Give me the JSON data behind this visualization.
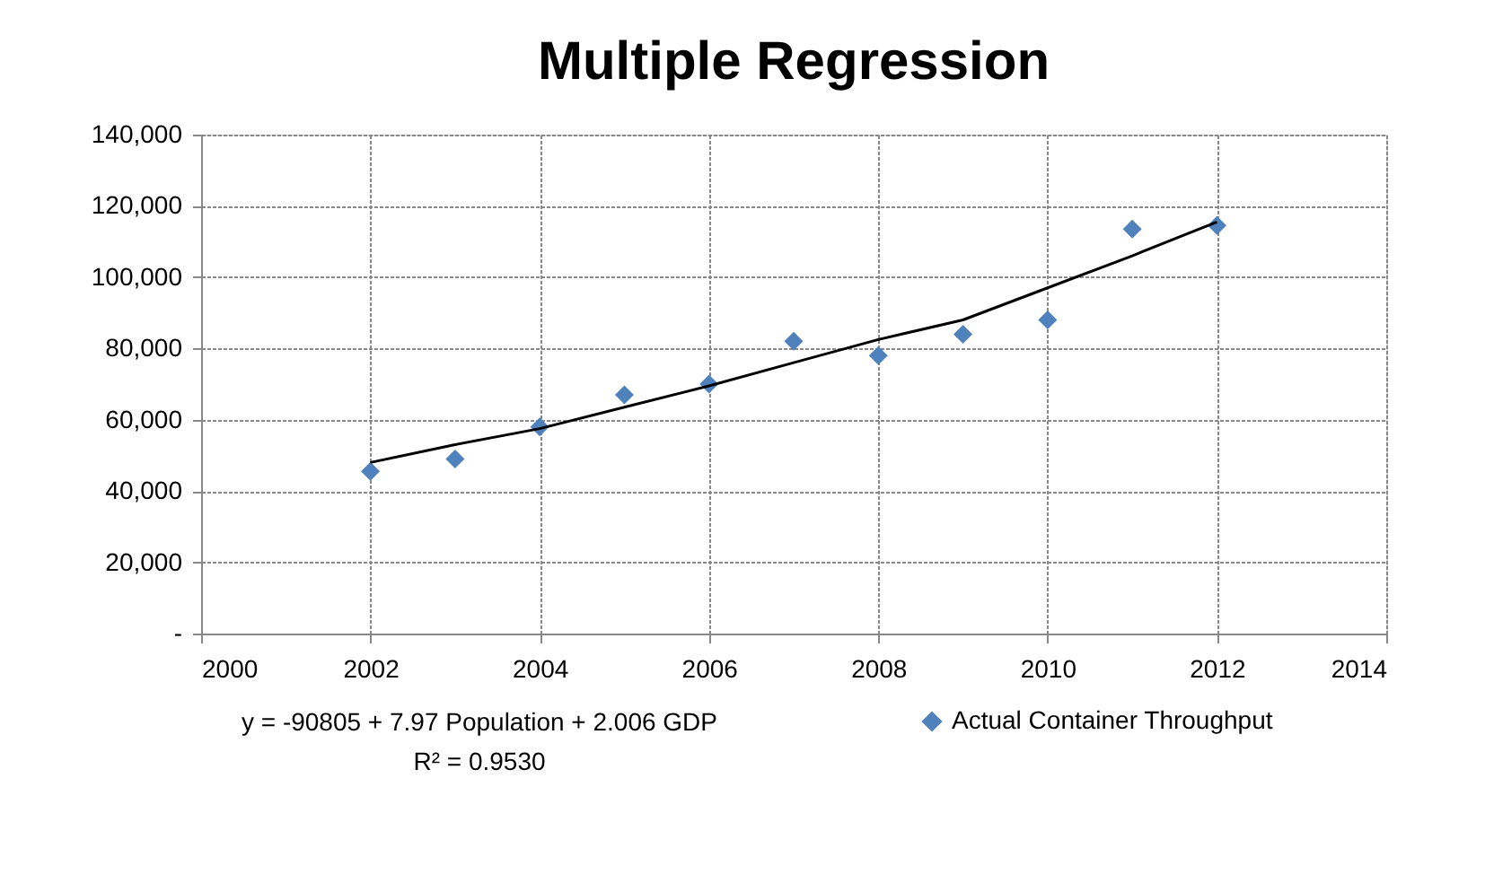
{
  "chart_data": {
    "type": "scatter",
    "title": "Multiple Regression",
    "x": [
      2002,
      2003,
      2004,
      2005,
      2006,
      2007,
      2008,
      2009,
      2010,
      2011,
      2012
    ],
    "series": [
      {
        "name": "Actual Container Throughput",
        "color": "#4f81bd",
        "marker": "diamond",
        "values": [
          45500,
          49000,
          58000,
          67000,
          70000,
          82000,
          78000,
          84000,
          88000,
          113500,
          114500
        ]
      },
      {
        "color": "#000000",
        "type": "line",
        "marker": "none",
        "values": [
          48000,
          53000,
          57500,
          63500,
          69500,
          76000,
          82500,
          88000,
          97000,
          106000,
          115500
        ]
      }
    ],
    "xlim": [
      2000,
      2014
    ],
    "xticks": [
      2000,
      2002,
      2004,
      2006,
      2008,
      2010,
      2012,
      2014
    ],
    "ylim": [
      0,
      140000
    ],
    "yticks": [
      {
        "value": 0,
        "label": "-"
      },
      {
        "value": 20000,
        "label": "20,000"
      },
      {
        "value": 40000,
        "label": "40,000"
      },
      {
        "value": 60000,
        "label": "60,000"
      },
      {
        "value": 80000,
        "label": "80,000"
      },
      {
        "value": 100000,
        "label": "100,000"
      },
      {
        "value": 120000,
        "label": "120,000"
      },
      {
        "value": 140000,
        "label": "140,000"
      }
    ],
    "grid": true,
    "legend": "bottom right",
    "annotations": [
      "y = -90805 + 7.97 Population + 2.006 GDP",
      "R² = 0.9530"
    ]
  }
}
